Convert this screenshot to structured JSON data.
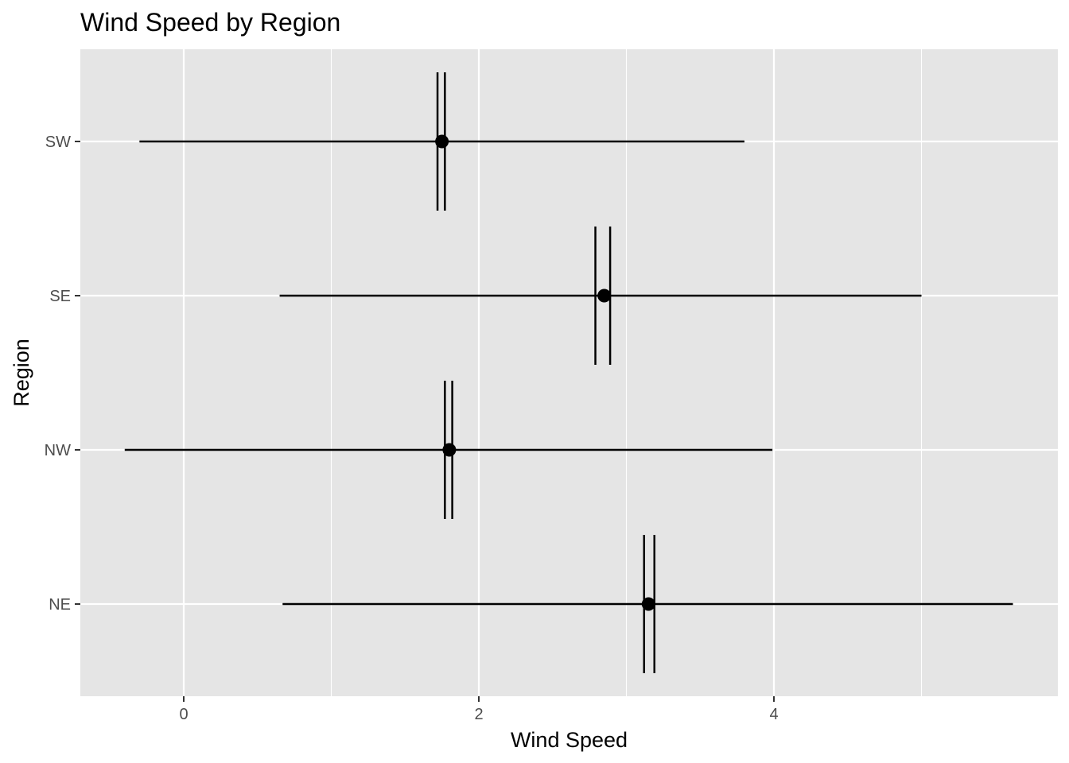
{
  "chart_data": {
    "type": "errorbar",
    "title": "Wind Speed by Region",
    "xlabel": "Wind Speed",
    "ylabel": "Region",
    "xlim": [
      -0.7,
      5.8
    ],
    "x_ticks": [
      0,
      2,
      4
    ],
    "x_tick_labels": [
      "0",
      "2",
      "4"
    ],
    "categories": [
      "NE",
      "NW",
      "SE",
      "SW"
    ],
    "grid": true,
    "legend": "none",
    "colors": {
      "panel": "#e5e5e5",
      "grid": "#ffffff",
      "mark": "#000000",
      "tick_text": "#4d4d4d"
    },
    "series": [
      {
        "category": "NE",
        "x": 3.15,
        "xmin": 0.67,
        "xmax": 5.62,
        "ymin": 3.12,
        "ymax": 3.19
      },
      {
        "category": "NW",
        "x": 1.8,
        "xmin": -0.4,
        "xmax": 3.99,
        "ymin": 1.77,
        "ymax": 1.82
      },
      {
        "category": "SE",
        "x": 2.85,
        "xmin": 0.65,
        "xmax": 5.0,
        "ymin": 2.79,
        "ymax": 2.89
      },
      {
        "category": "SW",
        "x": 1.75,
        "xmin": -0.3,
        "xmax": 3.8,
        "ymin": 1.72,
        "ymax": 1.77
      }
    ]
  }
}
